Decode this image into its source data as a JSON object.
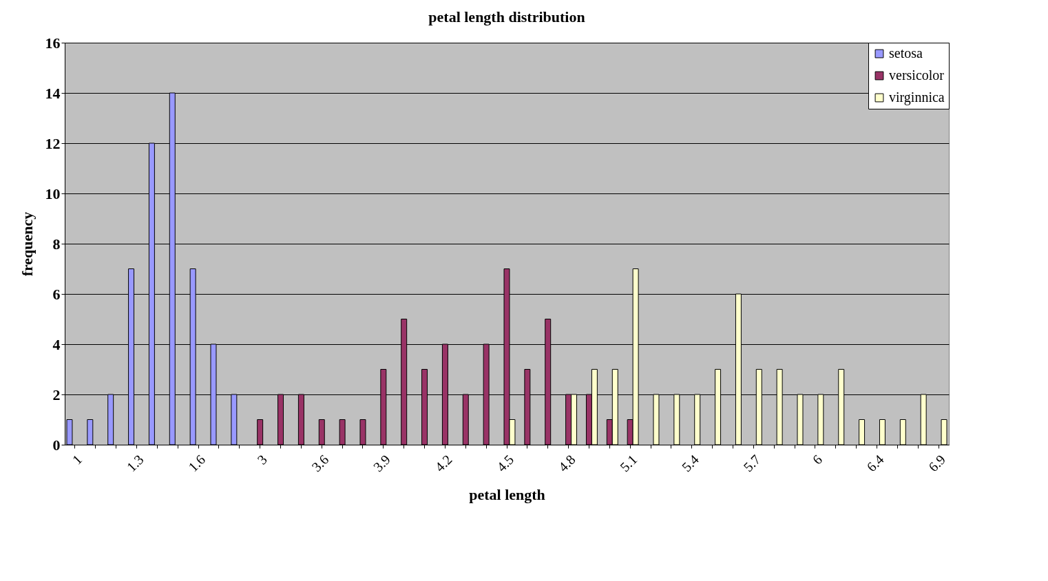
{
  "chart_data": {
    "type": "bar",
    "title": "petal length distribution",
    "xlabel": "petal length",
    "ylabel": "frequency",
    "categories": [
      "1",
      null,
      null,
      "1.3",
      null,
      null,
      "1.6",
      null,
      null,
      "3",
      null,
      null,
      "3.6",
      null,
      null,
      "3.9",
      null,
      null,
      "4.2",
      null,
      null,
      "4.5",
      null,
      null,
      "4.8",
      null,
      null,
      "5.1",
      null,
      null,
      "5.4",
      null,
      null,
      "5.7",
      null,
      null,
      "6",
      null,
      null,
      "6.4",
      null,
      null,
      "6.9"
    ],
    "series": [
      {
        "name": "setosa",
        "color": "#9999ff",
        "values": [
          1,
          1,
          2,
          7,
          12,
          14,
          7,
          4,
          2,
          null,
          null,
          null,
          null,
          null,
          null,
          null,
          null,
          null,
          null,
          null,
          null,
          null,
          null,
          null,
          null,
          null,
          null,
          null,
          null,
          null,
          null,
          null,
          null,
          null,
          null,
          null,
          null,
          null,
          null,
          null,
          null,
          null,
          null
        ]
      },
      {
        "name": "versicolor",
        "color": "#993366",
        "values": [
          null,
          null,
          null,
          null,
          null,
          null,
          null,
          null,
          null,
          1,
          2,
          2,
          1,
          1,
          1,
          3,
          5,
          3,
          4,
          2,
          4,
          7,
          3,
          5,
          2,
          2,
          1,
          1,
          null,
          null,
          null,
          null,
          null,
          null,
          null,
          null,
          null,
          null,
          null,
          null,
          null,
          null,
          null
        ]
      },
      {
        "name": "virginnica",
        "color": "#ffffcc",
        "values": [
          null,
          null,
          null,
          null,
          null,
          null,
          null,
          null,
          null,
          null,
          null,
          null,
          null,
          null,
          null,
          null,
          null,
          null,
          null,
          null,
          null,
          1,
          null,
          null,
          2,
          3,
          3,
          7,
          2,
          2,
          2,
          3,
          6,
          3,
          3,
          2,
          2,
          3,
          1,
          1,
          1,
          2,
          1
        ]
      }
    ],
    "ylim": [
      0,
      16
    ],
    "yticks": [
      0,
      2,
      4,
      6,
      8,
      10,
      12,
      14,
      16
    ],
    "grid": "y",
    "legend": "top right"
  }
}
